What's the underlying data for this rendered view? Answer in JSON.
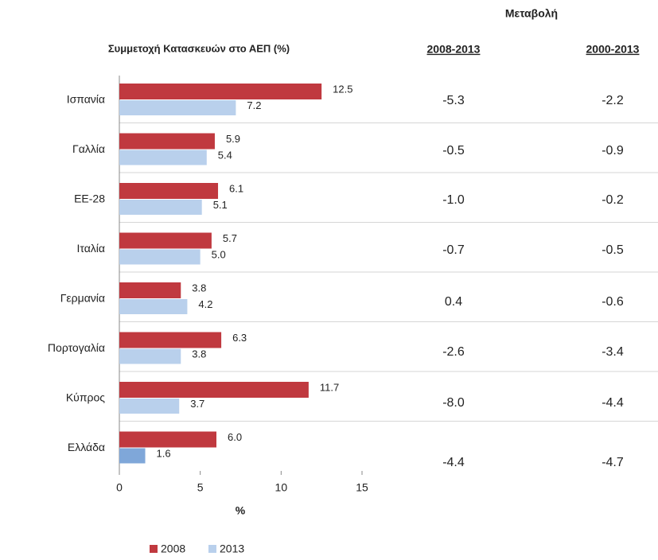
{
  "chart_data": {
    "type": "bar",
    "orientation": "horizontal",
    "title": "Συμμετοχή Κατασκευών στο ΑΕΠ (%)",
    "xlabel": "%",
    "categories": [
      "Ισπανία",
      "Γαλλία",
      "ΕΕ-28",
      "Ιταλία",
      "Γερμανία",
      "Πορτογαλία",
      "Κύπρος",
      "Ελλάδα"
    ],
    "series": [
      {
        "name": "2008",
        "color": "#c0393f",
        "values": [
          12.5,
          5.9,
          6.1,
          5.7,
          3.8,
          6.3,
          11.7,
          6.0
        ],
        "value_labels": [
          "12.5",
          "5.9",
          "6.1",
          "5.7",
          "3.8",
          "6.3",
          "11.7",
          "6.0"
        ]
      },
      {
        "name": "2013",
        "color": "#b9d0ec",
        "values": [
          7.2,
          5.4,
          5.1,
          5.0,
          4.2,
          3.8,
          3.7,
          1.6
        ],
        "value_labels": [
          "7.2",
          "5.4",
          "5.1",
          "5.0",
          "4.2",
          "3.8",
          "3.7",
          "1.6"
        ],
        "highlight": {
          "index": 7,
          "color": "#7fa7d9"
        }
      }
    ],
    "xlim": [
      0,
      15
    ],
    "xticks": [
      0,
      5,
      10,
      15
    ],
    "legend": "bottom"
  },
  "change": {
    "title": "Μεταβολή",
    "columns": [
      "2008-2013",
      "2000-2013"
    ],
    "rows": [
      [
        "-5.3",
        "-2.2"
      ],
      [
        "-0.5",
        "-0.9"
      ],
      [
        "-1.0",
        "-0.2"
      ],
      [
        "-0.7",
        "-0.5"
      ],
      [
        "0.4",
        "-0.6"
      ],
      [
        "-2.6",
        "-3.4"
      ],
      [
        "-8.0",
        "-4.4"
      ],
      [
        "-4.4",
        "-4.7"
      ]
    ]
  }
}
